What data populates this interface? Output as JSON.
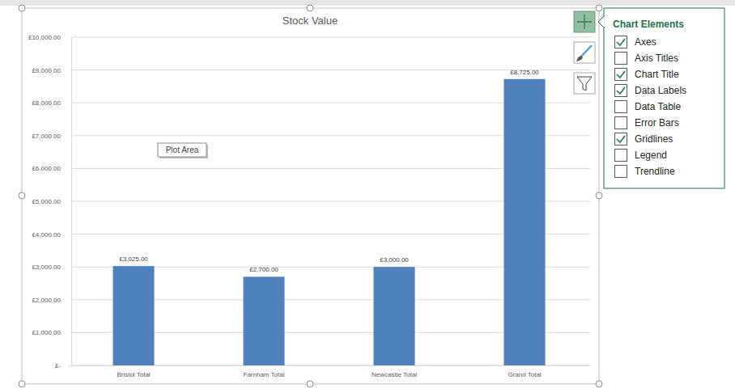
{
  "chart_data": {
    "type": "bar",
    "title": "Stock Value",
    "categories": [
      "Bristol Total",
      "Farnham Total",
      "Newcastle Total",
      "Grand Total"
    ],
    "values": [
      3025,
      2700,
      3000,
      8725
    ],
    "value_labels": [
      "£3,025.00",
      "£2,700.00",
      "£3,000.00",
      "£8,725.00"
    ],
    "color": "#4f81bd",
    "ylim": [
      0,
      10000
    ],
    "yticks": [
      {
        "value": 0,
        "label": "£-"
      },
      {
        "value": 1000,
        "label": "£1,000.00"
      },
      {
        "value": 2000,
        "label": "£2,000.00"
      },
      {
        "value": 3000,
        "label": "£3,000.00"
      },
      {
        "value": 4000,
        "label": "£4,000.00"
      },
      {
        "value": 5000,
        "label": "£5,000.00"
      },
      {
        "value": 6000,
        "label": "£6,000.00"
      },
      {
        "value": 7000,
        "label": "£7,000.00"
      },
      {
        "value": 8000,
        "label": "£8,000.00"
      },
      {
        "value": 9000,
        "label": "£9,000.00"
      },
      {
        "value": 10000,
        "label": "£10,000.00"
      }
    ],
    "grid": true,
    "data_labels": true
  },
  "tooltip": "Plot Area",
  "chart_elements": {
    "title": "Chart Elements",
    "items": [
      {
        "label": "Axes",
        "checked": true
      },
      {
        "label": "Axis Titles",
        "checked": false
      },
      {
        "label": "Chart Title",
        "checked": true
      },
      {
        "label": "Data Labels",
        "checked": true
      },
      {
        "label": "Data Table",
        "checked": false
      },
      {
        "label": "Error Bars",
        "checked": false
      },
      {
        "label": "Gridlines",
        "checked": true
      },
      {
        "label": "Legend",
        "checked": false
      },
      {
        "label": "Trendline",
        "checked": false
      }
    ]
  }
}
